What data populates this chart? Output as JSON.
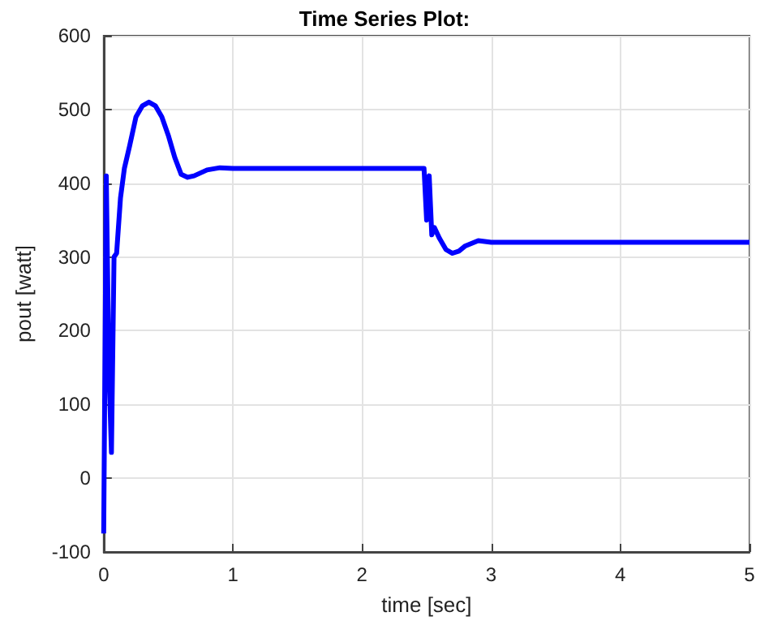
{
  "chart_data": {
    "type": "line",
    "title": "Time Series Plot:",
    "xlabel": "time [sec]",
    "ylabel": "pout [watt]",
    "xlim": [
      0,
      5
    ],
    "xticks": [
      0,
      1,
      2,
      3,
      4,
      5
    ],
    "ylim": [
      -100,
      600
    ],
    "yticks": [
      -100,
      0,
      100,
      200,
      300,
      400,
      500,
      600
    ],
    "grid": true,
    "marker": "none",
    "line_style": "solid",
    "series": [
      {
        "color": "#0000ff",
        "x": [
          0,
          0.02,
          0.04,
          0.06,
          0.08,
          0.1,
          0.13,
          0.16,
          0.2,
          0.25,
          0.3,
          0.35,
          0.4,
          0.45,
          0.5,
          0.55,
          0.6,
          0.65,
          0.7,
          0.8,
          0.9,
          1,
          1.5,
          2,
          2.48,
          2.5,
          2.52,
          2.54,
          2.56,
          2.6,
          2.65,
          2.7,
          2.75,
          2.8,
          2.9,
          3,
          3.5,
          4,
          4.5,
          5
        ],
        "values": [
          -75,
          410,
          150,
          35,
          300,
          305,
          380,
          420,
          450,
          490,
          505,
          510,
          505,
          490,
          465,
          435,
          412,
          408,
          410,
          418,
          421,
          420,
          420,
          420,
          420,
          350,
          410,
          330,
          340,
          325,
          310,
          305,
          308,
          315,
          322,
          320,
          320,
          320,
          320,
          320
        ]
      }
    ]
  }
}
